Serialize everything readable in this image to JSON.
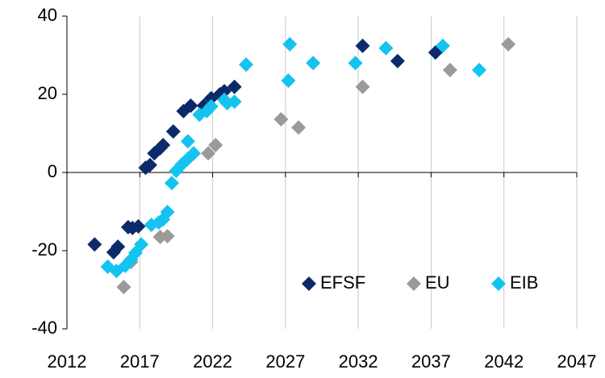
{
  "chart_data": {
    "type": "scatter",
    "xlim": [
      2012,
      2047
    ],
    "xticks": [
      2012,
      2017,
      2022,
      2027,
      2032,
      2037,
      2042,
      2047
    ],
    "ylim": [
      -40,
      40
    ],
    "yticks": [
      -40,
      -20,
      0,
      20,
      40
    ],
    "grid": "x",
    "legend": "lower right",
    "series": [
      {
        "name": "EFSF",
        "color": "#0c2a6a",
        "x": [
          2013.9,
          2015.2,
          2015.5,
          2016.2,
          2016.5,
          2016.9,
          2017.4,
          2017.7,
          2018.0,
          2018.4,
          2018.6,
          2019.3,
          2020.0,
          2020.5,
          2021.4,
          2021.9,
          2022.5,
          2022.8,
          2023.5,
          2032.3,
          2034.7,
          2037.3
        ],
        "values": [
          -18.4,
          -20.4,
          -19,
          -14,
          -14.2,
          -13.8,
          1.2,
          1.9,
          4.9,
          6.2,
          7.0,
          10.5,
          15.7,
          17.1,
          17.1,
          19,
          20,
          20.8,
          21.9,
          32.4,
          28.5,
          30.7
        ]
      },
      {
        "name": "EU",
        "color": "#9a9a9a",
        "x": [
          2015.9,
          2016.4,
          2018.4,
          2018.9,
          2021.7,
          2022.2,
          2026.7,
          2027.9,
          2032.3,
          2038.3,
          2042.3
        ],
        "values": [
          -29.3,
          -22.9,
          -16.5,
          -16.3,
          4.9,
          7,
          13.6,
          11.5,
          21.9,
          26.2,
          32.8
        ]
      },
      {
        "name": "EIB",
        "color": "#14c3f0",
        "x": [
          2014.8,
          2015.4,
          2016.0,
          2016.4,
          2016.7,
          2017.1,
          2017.8,
          2018.3,
          2018.6,
          2018.9,
          2019.2,
          2019.5,
          2019.9,
          2020.3,
          2020.3,
          2020.7,
          2021.1,
          2021.6,
          2021.9,
          2022.8,
          2023.0,
          2023.5,
          2024.3,
          2027.3,
          2027.2,
          2028.9,
          2031.8,
          2033.9,
          2037.8,
          2040.3
        ],
        "values": [
          -24.1,
          -25.2,
          -23.9,
          -22.3,
          -20.6,
          -18.4,
          -13.4,
          -12.8,
          -12,
          -10.1,
          -2.7,
          0.4,
          2.1,
          3.5,
          8,
          4.9,
          14.8,
          15.7,
          16.9,
          18.6,
          17.7,
          18.1,
          27.6,
          32.8,
          23.5,
          28,
          28,
          31.8,
          32.4,
          26.2
        ]
      }
    ]
  }
}
